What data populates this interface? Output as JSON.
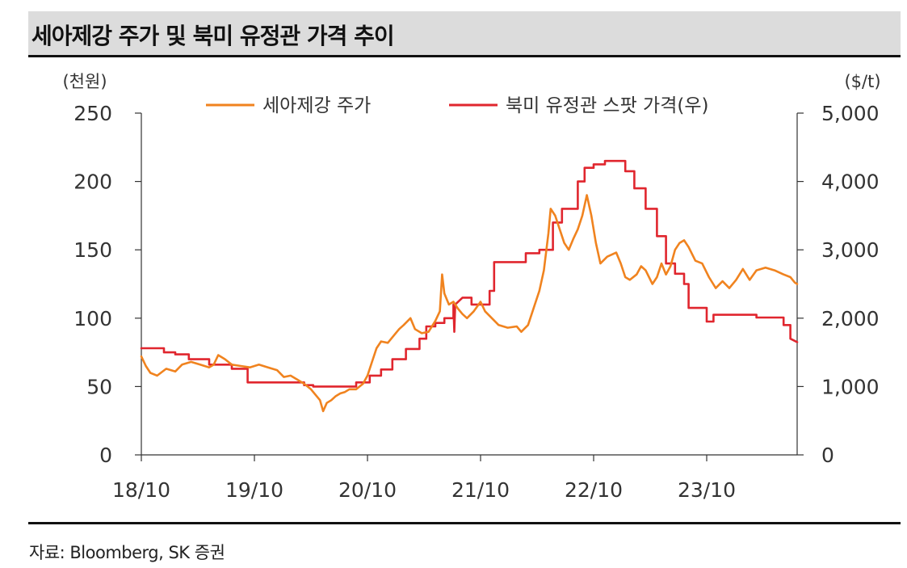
{
  "header": {
    "title": "세아제강 주가 및 북미 유정관 가격 추이"
  },
  "footer": {
    "source": "자료: Bloomberg, SK 증권"
  },
  "colors": {
    "series_stock": "#f0831f",
    "series_octg": "#e0262e",
    "axis": "#333333"
  },
  "chart_data": {
    "type": "line",
    "title": "세아제강 주가 및 북미 유정관 가격 추이",
    "x_ticks": [
      "18/10",
      "19/10",
      "20/10",
      "21/10",
      "22/10",
      "23/10"
    ],
    "x_range": [
      "18/10",
      "24/07"
    ],
    "left_axis": {
      "unit": "(천원)",
      "ylim": [
        0,
        250
      ],
      "ticks": [
        "0",
        "50",
        "100",
        "150",
        "200",
        "250"
      ]
    },
    "right_axis": {
      "unit": "($/t)",
      "ylim": [
        0,
        5000
      ],
      "ticks": [
        "0",
        "1,000",
        "2,000",
        "3,000",
        "4,000",
        "5,000"
      ]
    },
    "legend": [
      "세아제강 주가",
      "북미 유정관 스팟 가격(우)"
    ],
    "series": [
      {
        "name": "세아제강 주가",
        "axis": "left",
        "points": [
          [
            0.0,
            72
          ],
          [
            0.1,
            65
          ],
          [
            0.2,
            60
          ],
          [
            0.35,
            58
          ],
          [
            0.55,
            63
          ],
          [
            0.75,
            61
          ],
          [
            0.9,
            66
          ],
          [
            1.1,
            68
          ],
          [
            1.3,
            66
          ],
          [
            1.5,
            64
          ],
          [
            1.6,
            66
          ],
          [
            1.7,
            73
          ],
          [
            1.85,
            70
          ],
          [
            2.0,
            66
          ],
          [
            2.2,
            65
          ],
          [
            2.4,
            64
          ],
          [
            2.6,
            66
          ],
          [
            2.8,
            64
          ],
          [
            3.0,
            62
          ],
          [
            3.15,
            57
          ],
          [
            3.3,
            58
          ],
          [
            3.45,
            55
          ],
          [
            3.6,
            52
          ],
          [
            3.75,
            48
          ],
          [
            3.85,
            44
          ],
          [
            3.95,
            40
          ],
          [
            4.02,
            32
          ],
          [
            4.1,
            38
          ],
          [
            4.2,
            40
          ],
          [
            4.3,
            43
          ],
          [
            4.4,
            45
          ],
          [
            4.5,
            46
          ],
          [
            4.6,
            48
          ],
          [
            4.75,
            48
          ],
          [
            4.9,
            52
          ],
          [
            5.0,
            58
          ],
          [
            5.1,
            68
          ],
          [
            5.2,
            78
          ],
          [
            5.3,
            83
          ],
          [
            5.45,
            82
          ],
          [
            5.6,
            88
          ],
          [
            5.7,
            92
          ],
          [
            5.8,
            95
          ],
          [
            5.95,
            100
          ],
          [
            6.05,
            92
          ],
          [
            6.2,
            89
          ],
          [
            6.35,
            90
          ],
          [
            6.5,
            98
          ],
          [
            6.6,
            105
          ],
          [
            6.65,
            132
          ],
          [
            6.7,
            118
          ],
          [
            6.8,
            110
          ],
          [
            6.9,
            112
          ],
          [
            7.0,
            107
          ],
          [
            7.1,
            103
          ],
          [
            7.2,
            100
          ],
          [
            7.35,
            105
          ],
          [
            7.5,
            112
          ],
          [
            7.6,
            105
          ],
          [
            7.75,
            100
          ],
          [
            7.9,
            95
          ],
          [
            8.1,
            93
          ],
          [
            8.3,
            94
          ],
          [
            8.4,
            90
          ],
          [
            8.55,
            95
          ],
          [
            8.7,
            110
          ],
          [
            8.8,
            120
          ],
          [
            8.9,
            135
          ],
          [
            9.0,
            162
          ],
          [
            9.05,
            180
          ],
          [
            9.15,
            175
          ],
          [
            9.25,
            165
          ],
          [
            9.35,
            155
          ],
          [
            9.45,
            150
          ],
          [
            9.55,
            158
          ],
          [
            9.65,
            165
          ],
          [
            9.75,
            175
          ],
          [
            9.85,
            190
          ],
          [
            9.95,
            175
          ],
          [
            10.05,
            155
          ],
          [
            10.15,
            140
          ],
          [
            10.3,
            145
          ],
          [
            10.5,
            148
          ],
          [
            10.6,
            140
          ],
          [
            10.7,
            130
          ],
          [
            10.8,
            128
          ],
          [
            10.95,
            132
          ],
          [
            11.05,
            138
          ],
          [
            11.15,
            135
          ],
          [
            11.3,
            125
          ],
          [
            11.4,
            130
          ],
          [
            11.5,
            140
          ],
          [
            11.6,
            132
          ],
          [
            11.7,
            138
          ],
          [
            11.8,
            150
          ],
          [
            11.9,
            155
          ],
          [
            12.0,
            157
          ],
          [
            12.1,
            152
          ],
          [
            12.25,
            142
          ],
          [
            12.4,
            140
          ],
          [
            12.55,
            130
          ],
          [
            12.7,
            122
          ],
          [
            12.85,
            127
          ],
          [
            13.0,
            122
          ],
          [
            13.15,
            128
          ],
          [
            13.3,
            136
          ],
          [
            13.45,
            128
          ],
          [
            13.6,
            135
          ],
          [
            13.8,
            137
          ],
          [
            14.0,
            135
          ],
          [
            14.2,
            132
          ],
          [
            14.35,
            130
          ],
          [
            14.45,
            126
          ],
          [
            14.5,
            125
          ]
        ]
      },
      {
        "name": "북미 유정관 스팟 가격(우)",
        "axis": "right",
        "points": [
          [
            0.0,
            1560
          ],
          [
            0.5,
            1560
          ],
          [
            0.5,
            1500
          ],
          [
            0.75,
            1500
          ],
          [
            0.75,
            1470
          ],
          [
            1.05,
            1470
          ],
          [
            1.05,
            1400
          ],
          [
            1.5,
            1400
          ],
          [
            1.5,
            1320
          ],
          [
            2.0,
            1320
          ],
          [
            2.0,
            1260
          ],
          [
            2.35,
            1260
          ],
          [
            2.35,
            1060
          ],
          [
            3.6,
            1060
          ],
          [
            3.6,
            1020
          ],
          [
            3.8,
            1020
          ],
          [
            3.8,
            1000
          ],
          [
            4.75,
            1000
          ],
          [
            4.75,
            1060
          ],
          [
            5.05,
            1060
          ],
          [
            5.05,
            1160
          ],
          [
            5.3,
            1160
          ],
          [
            5.3,
            1250
          ],
          [
            5.55,
            1250
          ],
          [
            5.55,
            1400
          ],
          [
            5.85,
            1400
          ],
          [
            5.85,
            1550
          ],
          [
            6.15,
            1550
          ],
          [
            6.15,
            1700
          ],
          [
            6.3,
            1700
          ],
          [
            6.3,
            1880
          ],
          [
            6.5,
            1880
          ],
          [
            6.5,
            1930
          ],
          [
            6.7,
            1930
          ],
          [
            6.7,
            2000
          ],
          [
            6.9,
            2000
          ],
          [
            6.9,
            2200
          ],
          [
            6.92,
            1800
          ],
          [
            6.94,
            2200
          ],
          [
            7.1,
            2300
          ],
          [
            7.3,
            2300
          ],
          [
            7.3,
            2200
          ],
          [
            7.7,
            2200
          ],
          [
            7.7,
            2400
          ],
          [
            7.8,
            2400
          ],
          [
            7.8,
            2820
          ],
          [
            8.5,
            2820
          ],
          [
            8.5,
            2950
          ],
          [
            8.8,
            2950
          ],
          [
            8.8,
            3000
          ],
          [
            9.1,
            3000
          ],
          [
            9.1,
            3400
          ],
          [
            9.3,
            3400
          ],
          [
            9.3,
            3600
          ],
          [
            9.65,
            3600
          ],
          [
            9.65,
            4000
          ],
          [
            9.8,
            4000
          ],
          [
            9.8,
            4200
          ],
          [
            10.0,
            4200
          ],
          [
            10.0,
            4250
          ],
          [
            10.25,
            4250
          ],
          [
            10.25,
            4300
          ],
          [
            10.7,
            4300
          ],
          [
            10.7,
            4150
          ],
          [
            10.9,
            4150
          ],
          [
            10.9,
            3900
          ],
          [
            11.15,
            3900
          ],
          [
            11.15,
            3600
          ],
          [
            11.4,
            3600
          ],
          [
            11.4,
            3200
          ],
          [
            11.6,
            3200
          ],
          [
            11.6,
            2800
          ],
          [
            11.8,
            2800
          ],
          [
            11.8,
            2650
          ],
          [
            12.0,
            2650
          ],
          [
            12.0,
            2500
          ],
          [
            12.1,
            2500
          ],
          [
            12.1,
            2150
          ],
          [
            12.5,
            2150
          ],
          [
            12.5,
            1950
          ],
          [
            12.65,
            1950
          ],
          [
            12.65,
            2050
          ],
          [
            13.6,
            2050
          ],
          [
            13.6,
            2010
          ],
          [
            14.2,
            2010
          ],
          [
            14.2,
            1900
          ],
          [
            14.35,
            1900
          ],
          [
            14.35,
            1700
          ],
          [
            14.5,
            1650
          ]
        ]
      }
    ]
  }
}
